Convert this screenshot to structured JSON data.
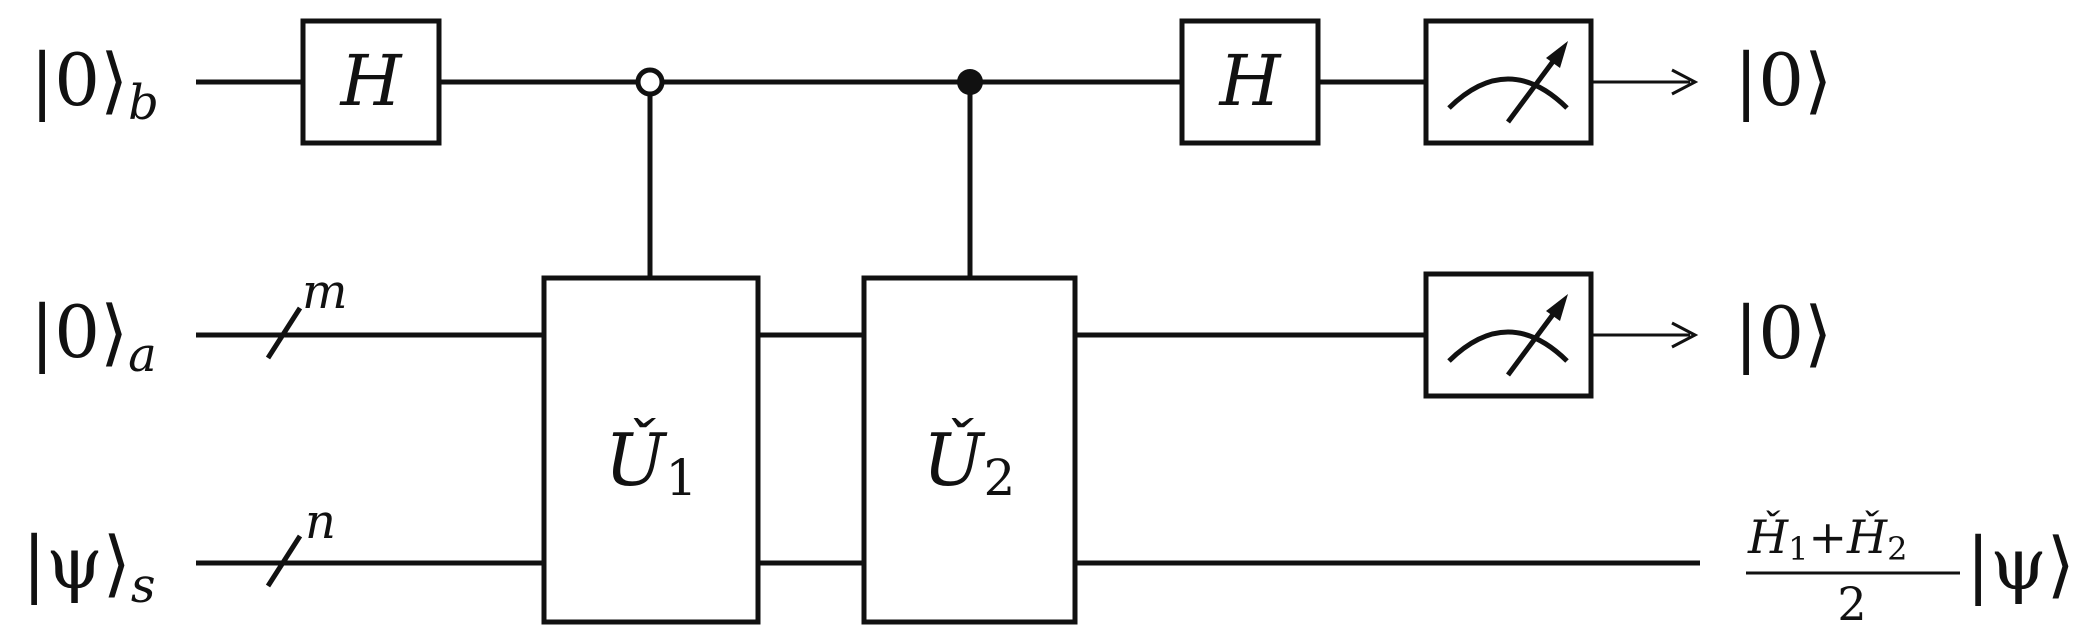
{
  "inputs": {
    "b": {
      "ket": "|0⟩",
      "sub": "b"
    },
    "a": {
      "ket": "|0⟩",
      "sub": "a"
    },
    "s": {
      "ket": "|ψ⟩",
      "sub": "s"
    }
  },
  "wire_labels": {
    "a_width": "m",
    "s_width": "n"
  },
  "gates": {
    "h1": "H",
    "u1": {
      "symbol": "Ǔ",
      "index": "1"
    },
    "u2": {
      "symbol": "Ǔ",
      "index": "2"
    },
    "h2": "H"
  },
  "controls": {
    "u1": "open (control on |0⟩)",
    "u2": "filled (control on |1⟩)"
  },
  "outputs": {
    "b": "|0⟩",
    "a": "|0⟩",
    "s": {
      "h1": "Ȟ",
      "h1_index": "1",
      "plus": "+",
      "h2": "Ȟ",
      "h2_index": "2",
      "denominator": "2",
      "ket": "|ψ⟩"
    }
  }
}
